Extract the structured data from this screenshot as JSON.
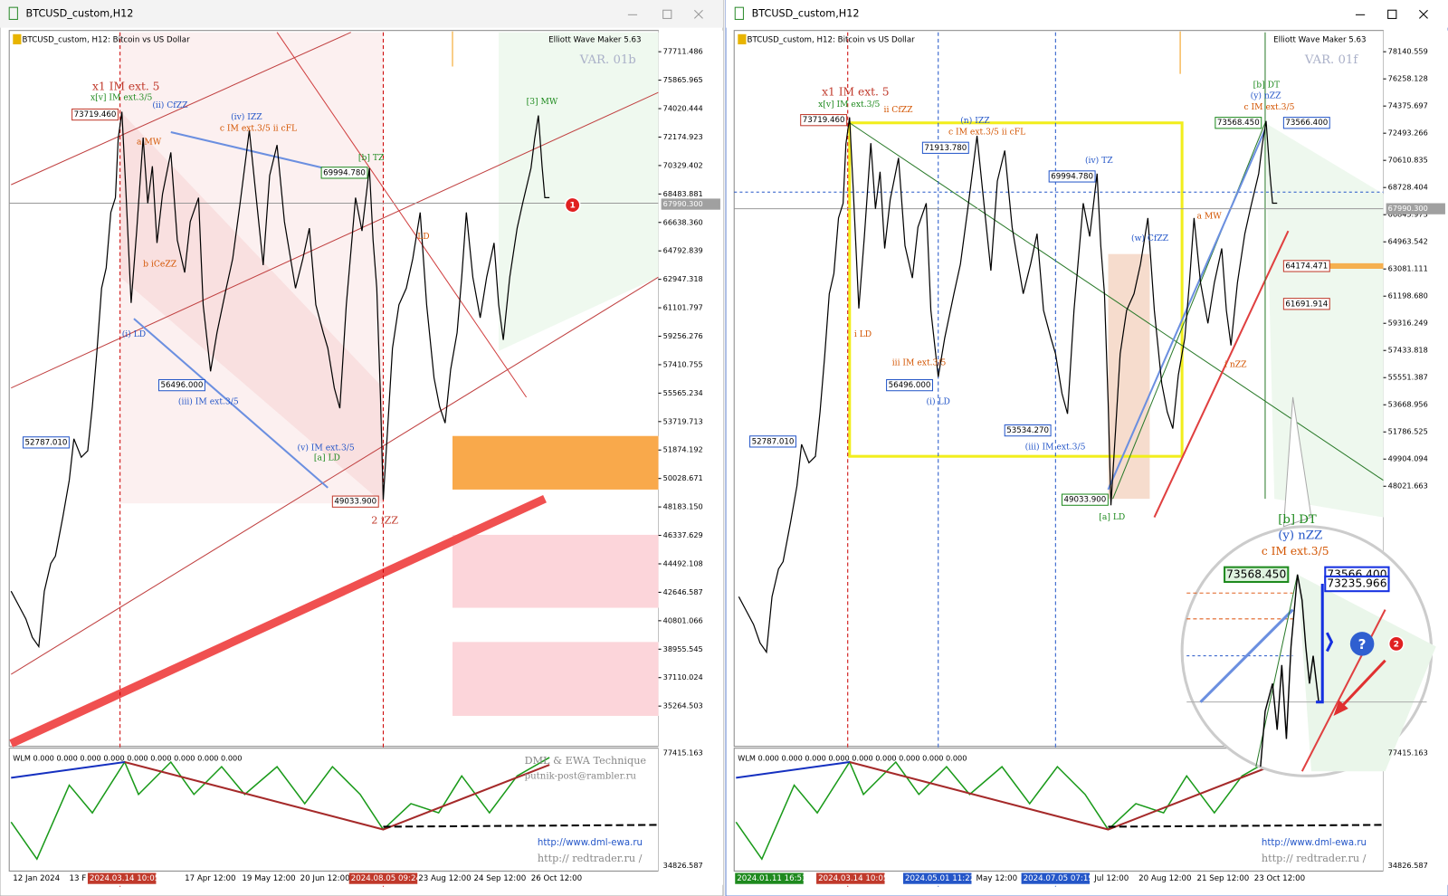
{
  "windows": [
    {
      "title": "BTCUSD_custom,H12",
      "chart_header": "BTCUSD_custom, H12:  Bitcoin vs US Dollar",
      "indicator": "Elliott Wave Maker 5.63",
      "variant": "VAR. 01b",
      "price_axis": [
        "77711.486",
        "75865.965",
        "74020.444",
        "72174.923",
        "70329.402",
        "68483.881",
        "66638.360",
        "64792.839",
        "62947.318",
        "61101.797",
        "59256.276",
        "57410.755",
        "55565.234",
        "53719.713",
        "51874.192",
        "50028.671",
        "48183.150",
        "46337.629",
        "44492.108",
        "42646.587",
        "40801.066",
        "38955.545",
        "37110.024",
        "35264.503"
      ],
      "current_price": "67990.300",
      "sub_header": "WLM 0.000 0.000 0.000 0.000 0.000 0.000 0.000 0.000 0.000",
      "sub_axis": [
        "77415.163",
        "34826.587"
      ],
      "date_axis": [
        "12 Jan 2024",
        "13 F",
        "2024.03.14 10:05",
        "17 Apr 12:00",
        "19 May 12:00",
        "20 Jun 12:00",
        "2024.08.05 09:24",
        "23 Aug 12:00",
        "24 Sep 12:00",
        "26 Oct 12:00"
      ],
      "price_tags": [
        "73719.460",
        "69994.780",
        "56496.000",
        "52787.010",
        "49033.900"
      ],
      "wave_labels": [
        "x1 IM ext. 5",
        "x[v] IM ext.3/5",
        "(ii) CfZZ",
        "(iv) IZZ",
        "c IM ext.3/5 ii cFL",
        "[b] TZ",
        "(i) LD",
        "(iii) IM ext.3/5",
        "(v) IM ext.3/5",
        "[a] LD",
        "2 iZZ",
        "[3] MW",
        "LD",
        "a MW",
        "b iCeZZ"
      ],
      "footer": [
        "DML & EWA Technique",
        "putnik-post@rambler.ru",
        "http://www.dml-ewa.ru",
        "http://  redtrader.ru /"
      ],
      "badge": "1"
    },
    {
      "title": "BTCUSD_custom,H12",
      "chart_header": "BTCUSD_custom, H12:  Bitcoin vs US Dollar",
      "indicator": "Elliott Wave Maker 5.63",
      "variant": "VAR. 01f",
      "price_axis": [
        "78140.559",
        "76258.128",
        "74375.697",
        "72493.266",
        "70610.835",
        "68728.404",
        "66845.973",
        "64963.542",
        "63081.111",
        "61198.680",
        "59316.249",
        "57433.818",
        "55551.387",
        "53668.956",
        "51786.525",
        "49904.094",
        "48021.663"
      ],
      "current_price": "67990.300",
      "sub_header": "WLM 0.000 0.000 0.000 0.000 0.000 0.000 0.000 0.000 0.000",
      "sub_axis": [
        "77415.163",
        "34826.587"
      ],
      "date_axis": [
        "2024.01.11 16:51",
        "2024.03.14 10:05",
        "2024.05.01 11:22",
        "May 12:00",
        "2024.07.05 07:19",
        "Jul 12:00",
        "20 Aug 12:00",
        "21 Sep 12:00",
        "23 Oct 12:00"
      ],
      "price_tags": [
        "73719.460",
        "71913.780",
        "69994.780",
        "73568.450",
        "73566.400",
        "64174.471",
        "61691.914",
        "56496.000",
        "53534.270",
        "52787.010",
        "49033.900"
      ],
      "wave_labels": [
        "x1 IM ext. 5",
        "x[v] IM ext.3/5",
        "ii CfZZ",
        "(n) IZZ",
        "c IM ext.3/5 ii cFL",
        "(iv) TZ",
        "(w) CfZZ",
        "[b] DT",
        "(y) nZZ",
        "c IM ext.3/5",
        "i LD",
        "iii IM ext.3/5",
        "(i) LD",
        "(iii) IM ext.3/5",
        "[a] LD",
        "a MW",
        "i nZZ"
      ],
      "footer": [
        "http://www.dml-ewa.ru",
        "http://  redtrader.ru /"
      ],
      "zoom_labels": [
        "[b] DT",
        "(y) nZZ",
        "c IM ext.3/5",
        "73568.450",
        "73566.400",
        "73235.966"
      ],
      "badge": "2"
    }
  ]
}
